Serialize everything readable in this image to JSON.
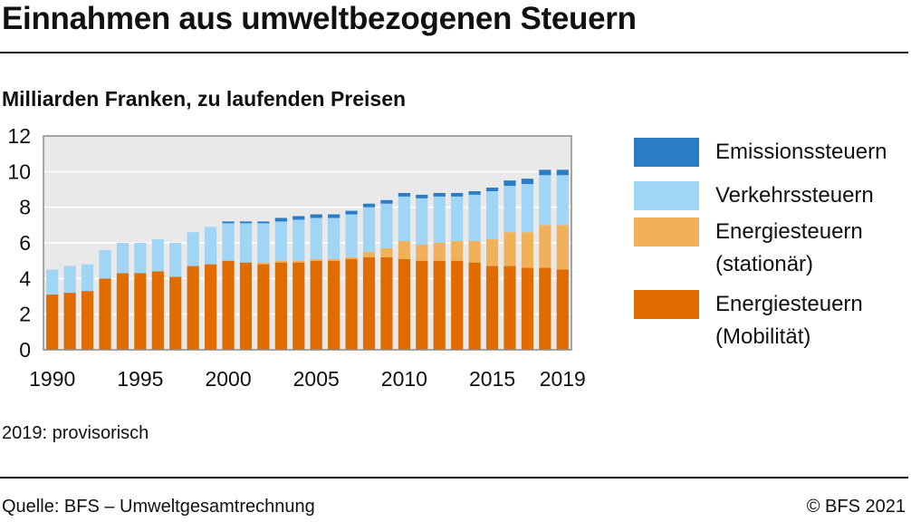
{
  "header": {
    "title": "Einnahmen aus umweltbezogenen Steuern"
  },
  "subtitle": "Milliarden Franken, zu laufenden Preisen",
  "footnote": "2019: provisorisch",
  "footer": {
    "source": "Quelle: BFS – Umweltgesamtrechnung",
    "copyright": "© BFS 2021"
  },
  "chart_data": {
    "type": "bar",
    "stacked": true,
    "ylim": [
      0,
      12
    ],
    "yticks": [
      0,
      2,
      4,
      6,
      8,
      10,
      12
    ],
    "xtick_labels": [
      "1990",
      "1995",
      "2000",
      "2005",
      "2010",
      "2015",
      "2019"
    ],
    "grid": true,
    "legend_position": "right",
    "categories": [
      1990,
      1991,
      1992,
      1993,
      1994,
      1995,
      1996,
      1997,
      1998,
      1999,
      2000,
      2001,
      2002,
      2003,
      2004,
      2005,
      2006,
      2007,
      2008,
      2009,
      2010,
      2011,
      2012,
      2013,
      2014,
      2015,
      2016,
      2017,
      2018,
      2019
    ],
    "series": [
      {
        "name": "Energiesteuern\n(Mobilität)",
        "color": "#e06c00",
        "values": [
          3.1,
          3.2,
          3.3,
          4.0,
          4.3,
          4.3,
          4.4,
          4.1,
          4.7,
          4.8,
          5.0,
          4.9,
          4.8,
          4.9,
          4.9,
          5.0,
          5.0,
          5.1,
          5.2,
          5.2,
          5.1,
          5.0,
          5.0,
          5.0,
          4.9,
          4.7,
          4.7,
          4.6,
          4.6,
          4.5
        ]
      },
      {
        "name": "Energiesteuern\n(stationär)",
        "color": "#f0b15a",
        "values": [
          0.0,
          0.0,
          0.0,
          0.0,
          0.0,
          0.0,
          0.0,
          0.0,
          0.0,
          0.0,
          0.0,
          0.0,
          0.1,
          0.1,
          0.1,
          0.1,
          0.1,
          0.1,
          0.3,
          0.5,
          1.0,
          0.9,
          1.0,
          1.1,
          1.2,
          1.5,
          1.9,
          2.0,
          2.4,
          2.5
        ]
      },
      {
        "name": "Verkehrssteuern",
        "color": "#a0d5f5",
        "values": [
          1.4,
          1.5,
          1.5,
          1.6,
          1.7,
          1.7,
          1.8,
          1.9,
          1.9,
          2.1,
          2.1,
          2.2,
          2.2,
          2.2,
          2.3,
          2.3,
          2.3,
          2.4,
          2.5,
          2.5,
          2.5,
          2.6,
          2.6,
          2.5,
          2.6,
          2.7,
          2.6,
          2.7,
          2.8,
          2.8
        ]
      },
      {
        "name": "Emissionssteuern",
        "color": "#2a7cc7",
        "values": [
          0.0,
          0.0,
          0.0,
          0.0,
          0.0,
          0.0,
          0.0,
          0.0,
          0.0,
          0.0,
          0.1,
          0.1,
          0.1,
          0.2,
          0.2,
          0.2,
          0.2,
          0.2,
          0.2,
          0.2,
          0.2,
          0.2,
          0.2,
          0.2,
          0.2,
          0.2,
          0.3,
          0.3,
          0.3,
          0.3
        ]
      }
    ],
    "legend_order": [
      3,
      2,
      1,
      0
    ]
  }
}
